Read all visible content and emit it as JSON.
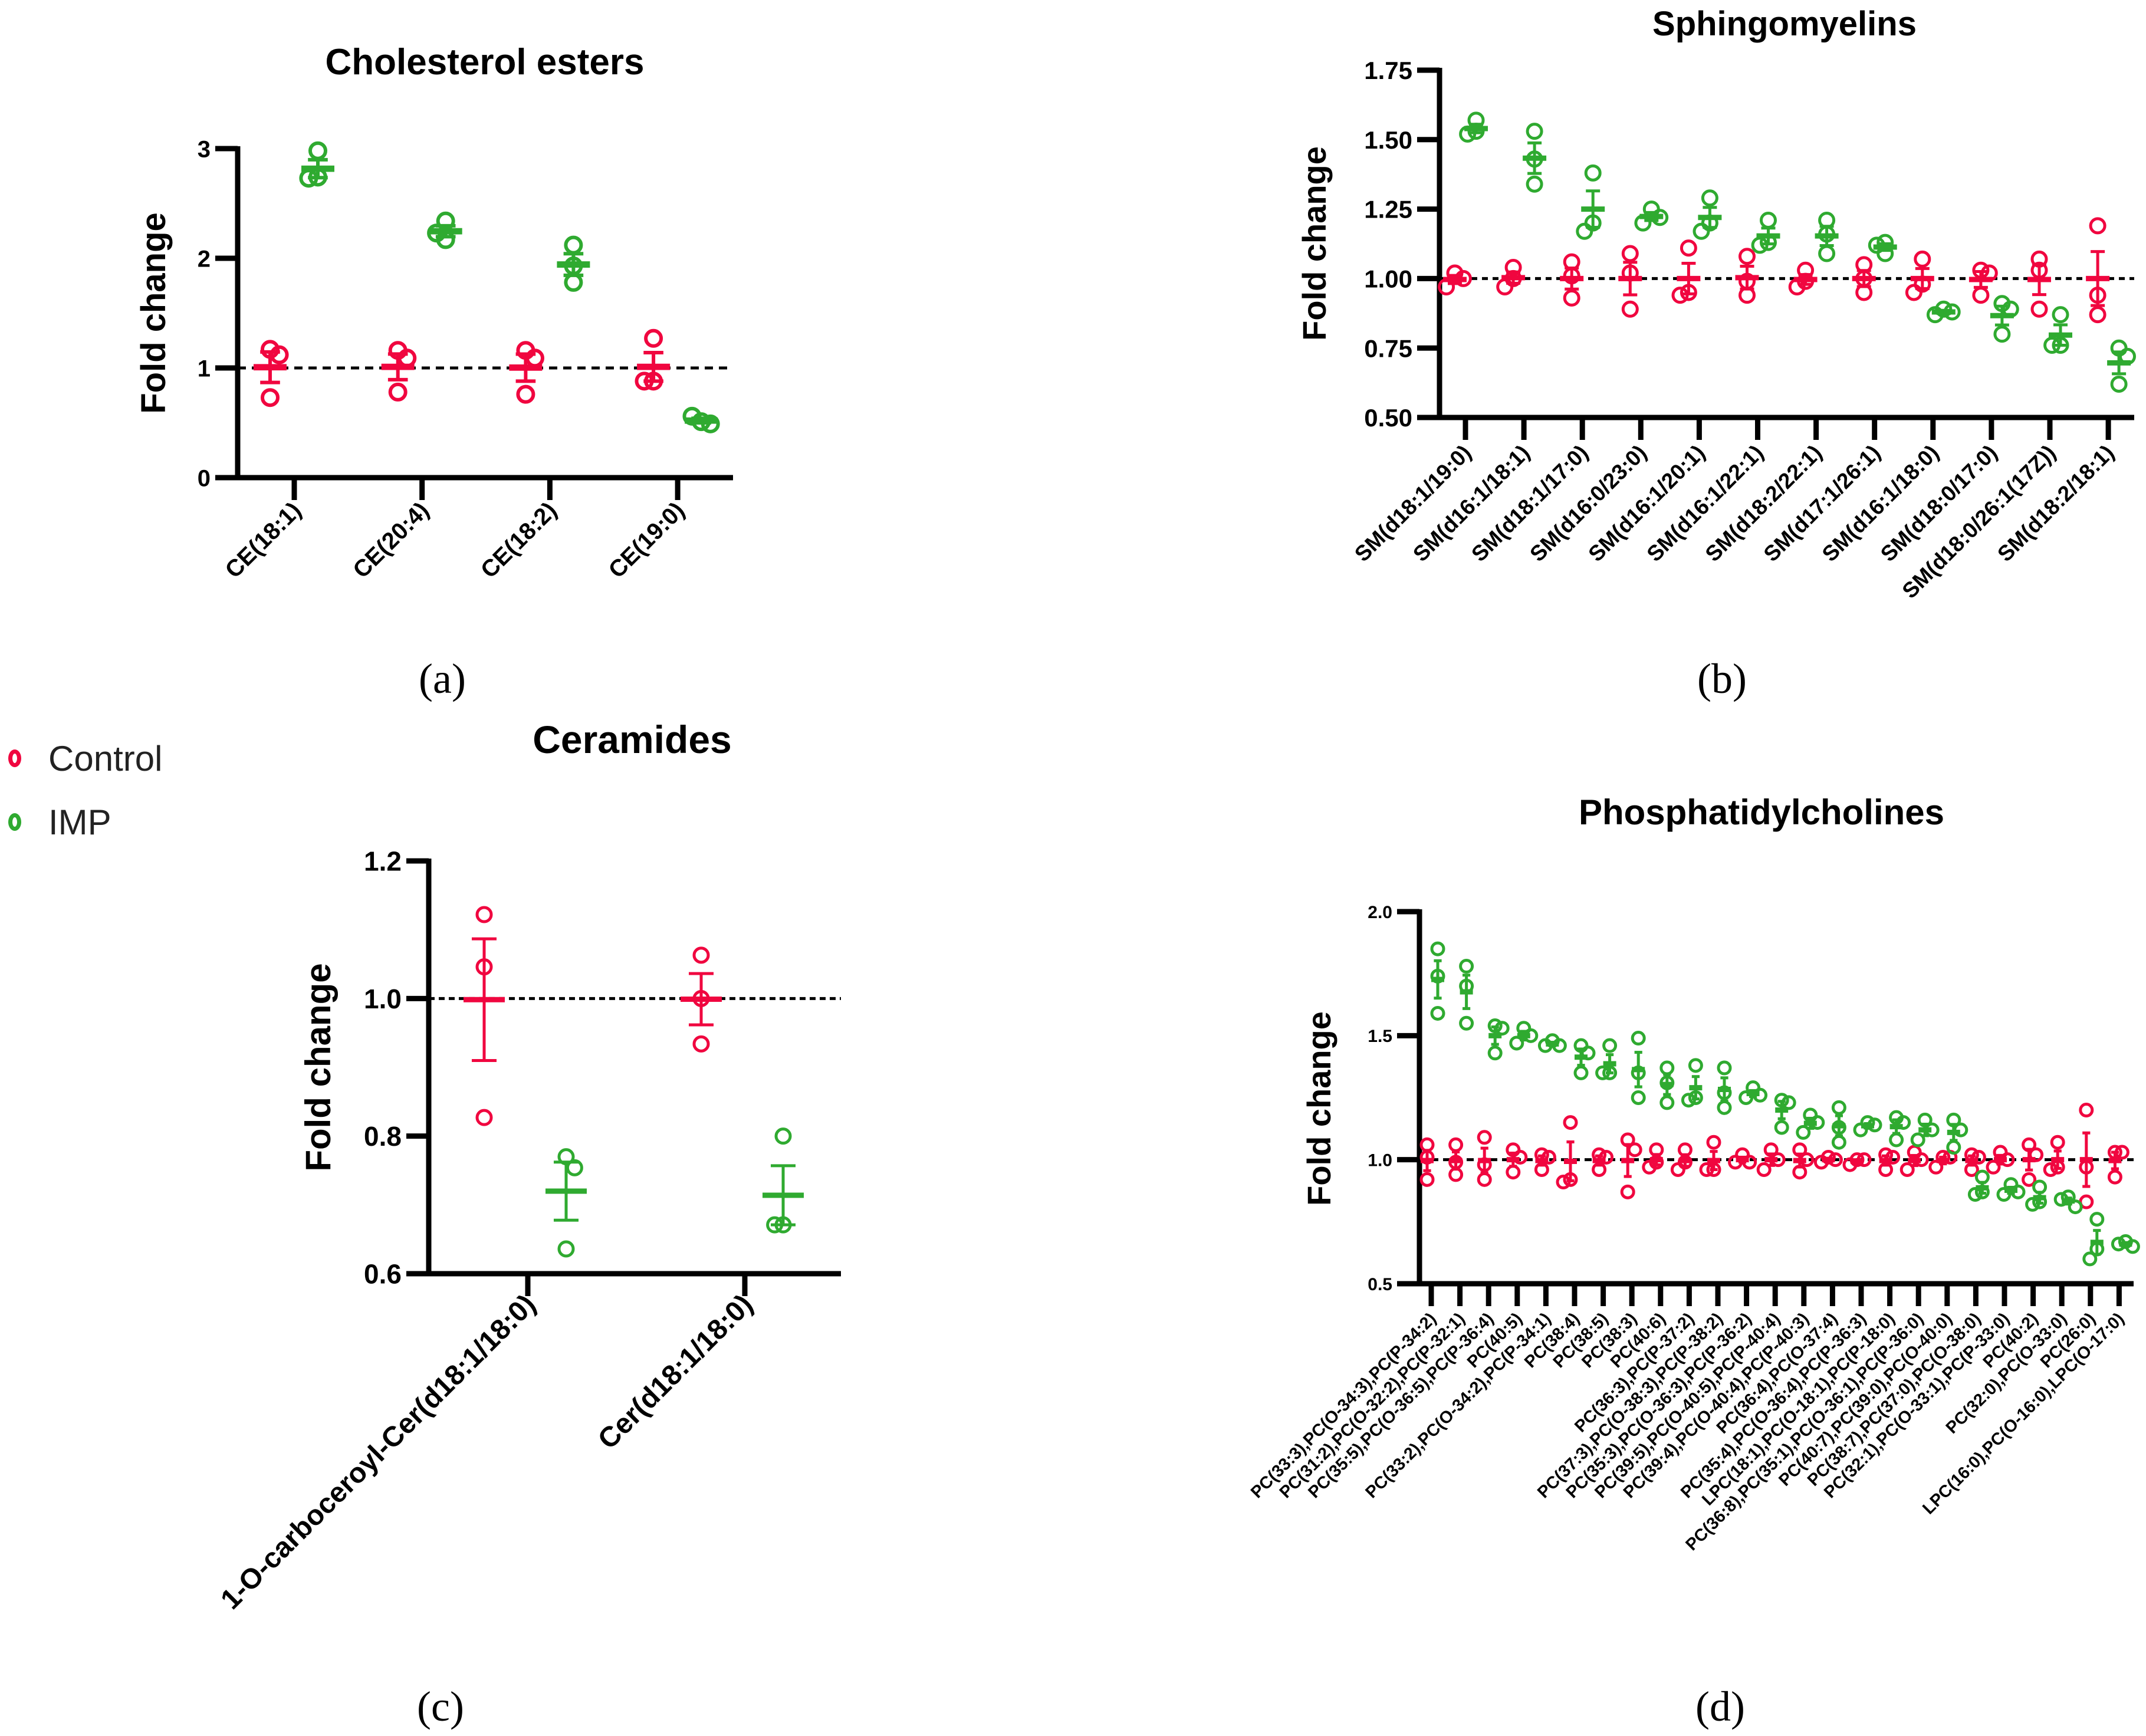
{
  "colors": {
    "control": "#F0063F",
    "imp": "#2FAA30",
    "axis": "#000000"
  },
  "legend": {
    "items": [
      {
        "label": "Control",
        "color_key": "control"
      },
      {
        "label": "IMP",
        "color_key": "imp"
      }
    ]
  },
  "chart_data": [
    {
      "type": "scatter",
      "panel_label": "(a)",
      "title": "Cholesterol esters",
      "ylabel": "Fold change",
      "ylim": [
        0,
        3
      ],
      "yticks": [
        0,
        1,
        2,
        3
      ],
      "ytick_labels": [
        "0",
        "1",
        "2",
        "3"
      ],
      "reference_line": 1.0,
      "categories": [
        "CE(18:1)",
        "CE(20:4)",
        "CE(18:2)",
        "CE(19:0)"
      ],
      "series": [
        {
          "name": "Control",
          "values": [
            [
              1.17,
              1.12,
              0.73
            ],
            [
              1.16,
              1.09,
              0.78
            ],
            [
              1.16,
              1.09,
              0.76
            ],
            [
              1.27,
              0.88,
              0.88
            ]
          ]
        },
        {
          "name": "IMP",
          "values": [
            [
              2.98,
              2.74,
              2.73
            ],
            [
              2.34,
              2.17,
              2.23
            ],
            [
              2.12,
              1.93,
              1.78
            ],
            [
              0.51,
              0.49,
              0.56
            ]
          ]
        }
      ]
    },
    {
      "type": "scatter",
      "panel_label": "(b)",
      "title": "Sphingomyelins",
      "ylabel": "Fold change",
      "ylim": [
        0.5,
        1.75
      ],
      "yticks": [
        0.5,
        0.75,
        1.0,
        1.25,
        1.5,
        1.75
      ],
      "ytick_labels": [
        "0.50",
        "0.75",
        "1.00",
        "1.25",
        "1.50",
        "1.75"
      ],
      "reference_line": 1.0,
      "categories": [
        "SM(d18:1/19:0)",
        "SM(d16:1/18:1)",
        "SM(d18:1/17:0)",
        "SM(d16:0/23:0)",
        "SM(d16:1/20:1)",
        "SM(d16:1/22:1)",
        "SM(d18:2/22:1)",
        "SM(d17:1/26:1)",
        "SM(d16:1/18:0)",
        "SM(d18:0/17:0)",
        "SM(d18:0/26:1(17Z))",
        "SM(d18:2/18:1)"
      ],
      "series": [
        {
          "name": "Control",
          "values": [
            [
              1.02,
              1.0,
              0.97
            ],
            [
              1.04,
              1.0,
              0.97
            ],
            [
              1.06,
              1.01,
              0.93
            ],
            [
              1.09,
              1.02,
              0.89
            ],
            [
              1.11,
              0.95,
              0.94
            ],
            [
              1.08,
              0.99,
              0.94
            ],
            [
              1.03,
              0.99,
              0.97
            ],
            [
              1.05,
              1.0,
              0.95
            ],
            [
              1.07,
              0.98,
              0.95
            ],
            [
              1.03,
              1.02,
              0.94
            ],
            [
              1.07,
              1.03,
              0.89
            ],
            [
              1.19,
              0.94,
              0.87
            ]
          ]
        },
        {
          "name": "IMP",
          "values": [
            [
              1.57,
              1.53,
              1.52
            ],
            [
              1.53,
              1.43,
              1.34
            ],
            [
              1.38,
              1.2,
              1.17
            ],
            [
              1.25,
              1.22,
              1.2
            ],
            [
              1.29,
              1.2,
              1.17
            ],
            [
              1.21,
              1.13,
              1.12
            ],
            [
              1.21,
              1.16,
              1.09
            ],
            [
              1.13,
              1.09,
              1.12
            ],
            [
              0.89,
              0.88,
              0.87
            ],
            [
              0.91,
              0.89,
              0.8
            ],
            [
              0.87,
              0.76,
              0.76
            ],
            [
              0.75,
              0.72,
              0.62
            ]
          ]
        }
      ]
    },
    {
      "type": "scatter",
      "panel_label": "(c)",
      "title": "Ceramides",
      "ylabel": "Fold change",
      "ylim": [
        0.6,
        1.2
      ],
      "yticks": [
        0.6,
        0.8,
        1.0,
        1.2
      ],
      "ytick_labels": [
        "0.6",
        "0.8",
        "1.0",
        "1.2"
      ],
      "reference_line": 1.0,
      "categories": [
        "1-O-carboceroyl-Cer(d18:1/18:0)",
        "Cer(d18:1/18:0)"
      ],
      "series": [
        {
          "name": "Control",
          "values": [
            [
              1.122,
              1.046,
              0.827
            ],
            [
              1.063,
              1.0,
              0.934
            ]
          ]
        },
        {
          "name": "IMP",
          "values": [
            [
              0.77,
              0.754,
              0.636
            ],
            [
              0.8,
              0.671,
              0.671
            ]
          ]
        }
      ]
    },
    {
      "type": "scatter",
      "panel_label": "(d)",
      "title": "Phosphatidylcholines",
      "ylabel": "Fold change",
      "ylim": [
        0.5,
        2.0
      ],
      "yticks": [
        0.5,
        1.0,
        1.5,
        2.0
      ],
      "ytick_labels": [
        "0.5",
        "1.0",
        "1.5",
        "2.0"
      ],
      "reference_line": 1.0,
      "categories": [
        "PC(33:3),PC(O-34:3),PC(P-34:2)",
        "PC(31:2),PC(O-32:2),PC(P-32:1)",
        "PC(35:5),PC(O-36:5),PC(P-36:4)",
        "PC(40:5)",
        "PC(33:2),PC(O-34:2),PC(P-34:1)",
        "PC(38:4)",
        "PC(38:5)",
        "PC(38:3)",
        "PC(40:6)",
        "PC(36:3),PC(P-37:2)",
        "PC(37:3),PC(O-38:3),PC(P-38:2)",
        "PC(35:3),PC(O-36:3),PC(P-36:2)",
        "PC(39:5),PC(O-40:5),PC(P-40:4)",
        "PC(39:4),PC(O-40:4),PC(P-40:3)",
        "PC(36:4),PC(O-37:4)",
        "PC(35:4),PC(O-36:4),PC(P-36:3)",
        "LPC(18:1),PC(O-18:1),PC(P-18:0)",
        "PC(36:8),PC(35:1),PC(O-36:1),PC(P-36:0)",
        "PC(40:7),PC(39:0),PC(O-40:0)",
        "PC(38:7),PC(37:0),PC(O-38:0)",
        "PC(32:1),PC(O-33:1),PC(P-33:0)",
        "PC(40:2)",
        "PC(32:0),PC(O-33:0)",
        "PC(26:0)",
        "LPC(16:0),PC(O-16:0),LPC(O-17:0)"
      ],
      "series": [
        {
          "name": "Control",
          "values": [
            [
              1.06,
              1.01,
              0.92
            ],
            [
              1.06,
              0.99,
              0.94
            ],
            [
              1.09,
              0.98,
              0.92
            ],
            [
              1.04,
              1.01,
              0.95
            ],
            [
              1.02,
              1.01,
              0.96
            ],
            [
              1.15,
              0.92,
              0.91
            ],
            [
              1.02,
              1.01,
              0.96
            ],
            [
              1.08,
              1.04,
              0.87
            ],
            [
              1.04,
              0.99,
              0.97
            ],
            [
              1.04,
              0.99,
              0.96
            ],
            [
              1.07,
              0.96,
              0.96
            ],
            [
              1.02,
              0.99,
              0.99
            ],
            [
              1.04,
              1.0,
              0.96
            ],
            [
              1.04,
              1.0,
              0.95
            ],
            [
              1.01,
              1.0,
              0.99
            ],
            [
              1.0,
              1.0,
              0.98
            ],
            [
              1.02,
              1.01,
              0.96
            ],
            [
              1.03,
              1.0,
              0.96
            ],
            [
              1.01,
              1.01,
              0.97
            ],
            [
              1.02,
              1.01,
              0.96
            ],
            [
              1.03,
              1.0,
              0.97
            ],
            [
              1.06,
              1.02,
              0.92
            ],
            [
              1.07,
              0.97,
              0.96
            ],
            [
              1.2,
              0.97,
              0.83
            ],
            [
              1.03,
              1.03,
              0.93
            ]
          ]
        },
        {
          "name": "IMP",
          "values": [
            [
              1.85,
              1.74,
              1.59
            ],
            [
              1.78,
              1.7,
              1.55
            ],
            [
              1.54,
              1.53,
              1.43
            ],
            [
              1.53,
              1.5,
              1.47
            ],
            [
              1.48,
              1.46,
              1.46
            ],
            [
              1.46,
              1.43,
              1.35
            ],
            [
              1.46,
              1.35,
              1.35
            ],
            [
              1.49,
              1.35,
              1.25
            ],
            [
              1.37,
              1.31,
              1.23
            ],
            [
              1.38,
              1.25,
              1.24
            ],
            [
              1.37,
              1.27,
              1.21
            ],
            [
              1.29,
              1.26,
              1.25
            ],
            [
              1.24,
              1.23,
              1.13
            ],
            [
              1.18,
              1.15,
              1.11
            ],
            [
              1.21,
              1.13,
              1.07
            ],
            [
              1.15,
              1.14,
              1.12
            ],
            [
              1.17,
              1.15,
              1.08
            ],
            [
              1.16,
              1.12,
              1.08
            ],
            [
              1.16,
              1.12,
              1.05
            ],
            [
              0.93,
              0.87,
              0.86
            ],
            [
              0.9,
              0.87,
              0.86
            ],
            [
              0.89,
              0.83,
              0.82
            ],
            [
              0.85,
              0.81,
              0.84
            ],
            [
              0.76,
              0.64,
              0.6
            ],
            [
              0.67,
              0.65,
              0.66
            ]
          ]
        }
      ]
    }
  ]
}
